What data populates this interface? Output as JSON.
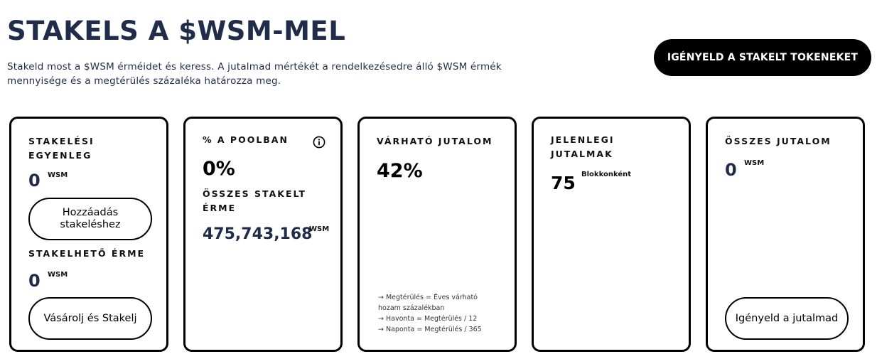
{
  "header": {
    "title": "STAKELS A $WSM-MEL",
    "description": "Stakeld most a $WSM érméidet és keress. A jutalmad mértékét a rendelkezésedre álló $WSM érmék mennyisége és a megtérülés százaléka határozza meg.",
    "claim_button": "IGÉNYELD A STAKELT TOKENEKET"
  },
  "cards": {
    "balance": {
      "label": "STAKELÉSI EGYENLEG",
      "value": "0",
      "unit": "WSM",
      "button": "Hozzáadás stakeléshez",
      "label2": "STAKELHETŐ ÉRME",
      "value2": "0",
      "unit2": "WSM",
      "button2": "Vásárolj és Stakelj"
    },
    "pool": {
      "label": "% A POOLBAN",
      "value": "0%",
      "label2": "ÖSSZES STAKELT ÉRME",
      "value2": "475,743,168",
      "unit2": "WSM",
      "icon": "info-icon"
    },
    "expected": {
      "label": "VÁRHATÓ JUTALOM",
      "value": "42%",
      "notes": [
        "→ Megtérülés = Éves várható",
        "hozam százalékban",
        "→ Havonta = Megtérülés / 12",
        "→ Naponta = Megtérülés / 365"
      ]
    },
    "current": {
      "label": "JELENLEGI JUTALMAK",
      "value": "75",
      "unit": "Blokkonként"
    },
    "total": {
      "label": "ÖSSZES JUTALOM",
      "value": "0",
      "unit": "WSM",
      "button": "Igényeld a jutalmad"
    }
  }
}
